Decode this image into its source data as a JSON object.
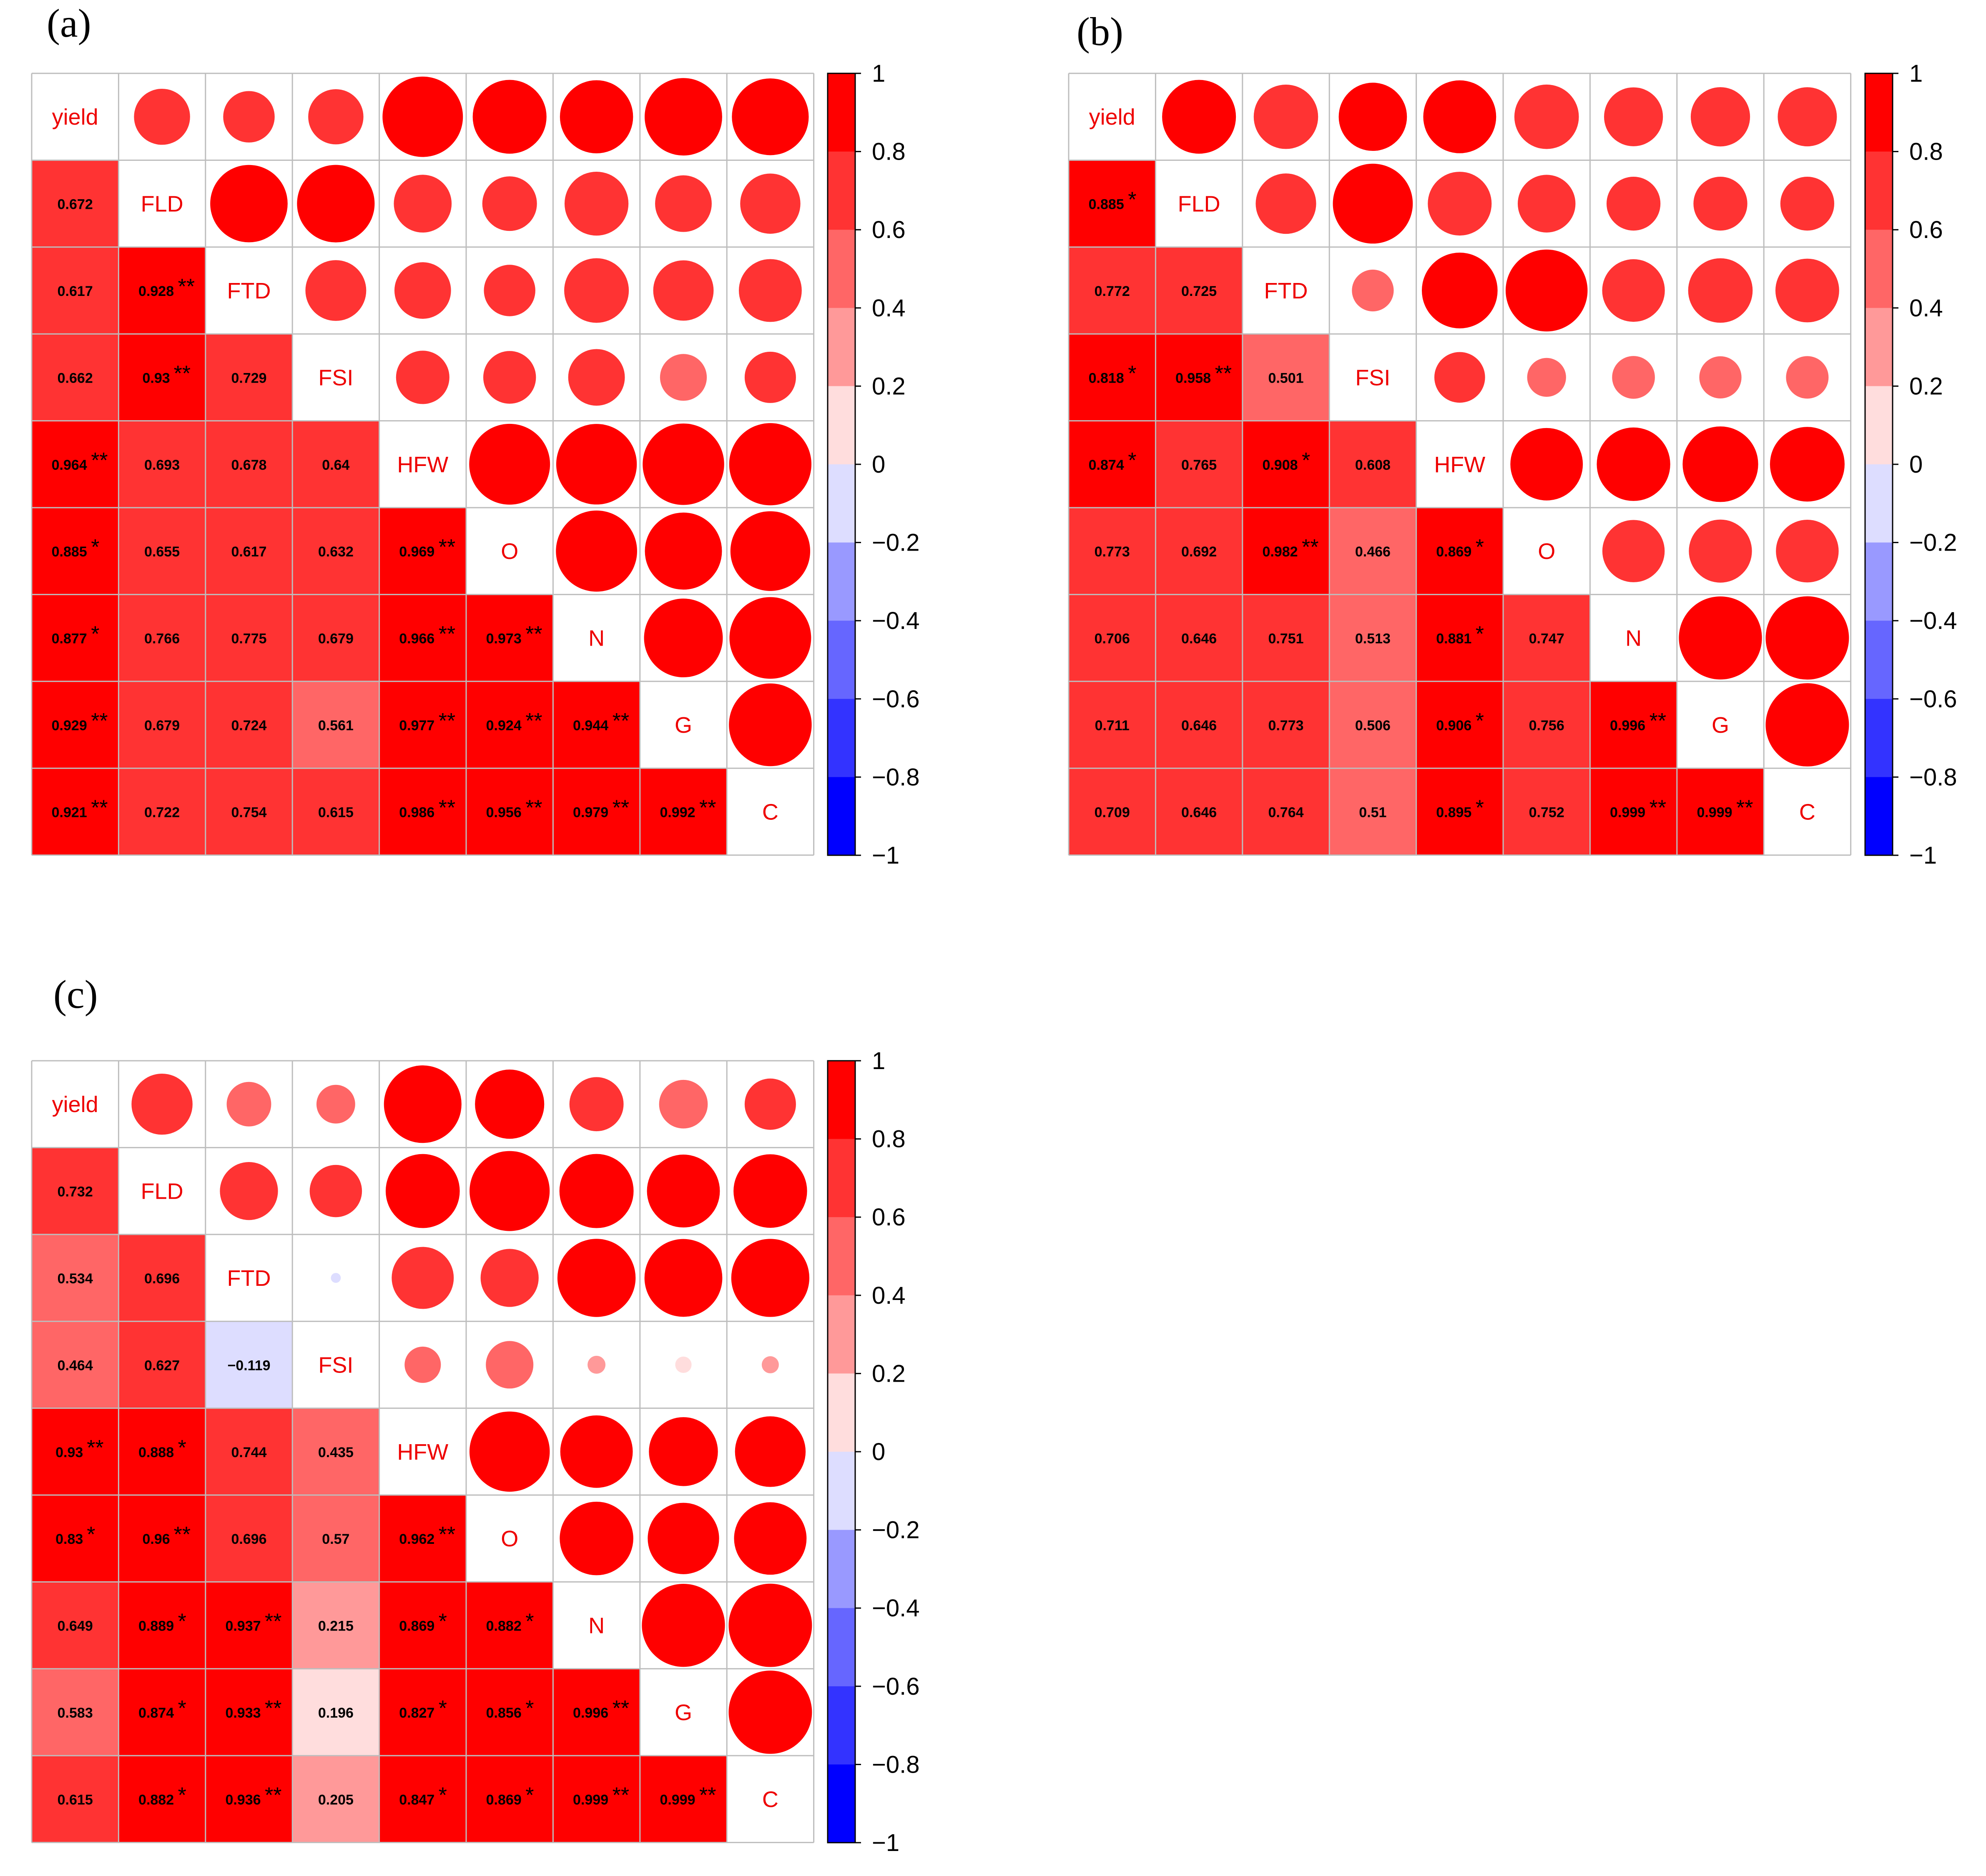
{
  "chart_data": [
    {
      "type": "heatmap",
      "panel_label": "(a)",
      "variables": [
        "yield",
        "FLD",
        "FTD",
        "FSI",
        "HFW",
        "O",
        "N",
        "G",
        "C"
      ],
      "lower_triangle": [
        [],
        [
          {
            "v": 0.672,
            "sig": ""
          }
        ],
        [
          {
            "v": 0.617,
            "sig": ""
          },
          {
            "v": 0.928,
            "sig": "**"
          }
        ],
        [
          {
            "v": 0.662,
            "sig": ""
          },
          {
            "v": 0.93,
            "sig": "**"
          },
          {
            "v": 0.729,
            "sig": ""
          }
        ],
        [
          {
            "v": 0.964,
            "sig": "**"
          },
          {
            "v": 0.693,
            "sig": ""
          },
          {
            "v": 0.678,
            "sig": ""
          },
          {
            "v": 0.64,
            "sig": ""
          }
        ],
        [
          {
            "v": 0.885,
            "sig": "*"
          },
          {
            "v": 0.655,
            "sig": ""
          },
          {
            "v": 0.617,
            "sig": ""
          },
          {
            "v": 0.632,
            "sig": ""
          },
          {
            "v": 0.969,
            "sig": "**"
          }
        ],
        [
          {
            "v": 0.877,
            "sig": "*"
          },
          {
            "v": 0.766,
            "sig": ""
          },
          {
            "v": 0.775,
            "sig": ""
          },
          {
            "v": 0.679,
            "sig": ""
          },
          {
            "v": 0.966,
            "sig": "**"
          },
          {
            "v": 0.973,
            "sig": "**"
          }
        ],
        [
          {
            "v": 0.929,
            "sig": "**"
          },
          {
            "v": 0.679,
            "sig": ""
          },
          {
            "v": 0.724,
            "sig": ""
          },
          {
            "v": 0.561,
            "sig": ""
          },
          {
            "v": 0.977,
            "sig": "**"
          },
          {
            "v": 0.924,
            "sig": "**"
          },
          {
            "v": 0.944,
            "sig": "**"
          }
        ],
        [
          {
            "v": 0.921,
            "sig": "**"
          },
          {
            "v": 0.722,
            "sig": ""
          },
          {
            "v": 0.754,
            "sig": ""
          },
          {
            "v": 0.615,
            "sig": ""
          },
          {
            "v": 0.986,
            "sig": "**"
          },
          {
            "v": 0.956,
            "sig": "**"
          },
          {
            "v": 0.979,
            "sig": "**"
          },
          {
            "v": 0.992,
            "sig": "**"
          }
        ]
      ],
      "colorbar": {
        "range": [
          -1,
          1
        ],
        "ticks": [
          "1",
          "0.8",
          "0.6",
          "0.4",
          "0.2",
          "0",
          "−0.2",
          "−0.4",
          "−0.6",
          "−0.8",
          "−1"
        ]
      }
    },
    {
      "type": "heatmap",
      "panel_label": "(b)",
      "variables": [
        "yield",
        "FLD",
        "FTD",
        "FSI",
        "HFW",
        "O",
        "N",
        "G",
        "C"
      ],
      "lower_triangle": [
        [],
        [
          {
            "v": 0.885,
            "sig": "*"
          }
        ],
        [
          {
            "v": 0.772,
            "sig": ""
          },
          {
            "v": 0.725,
            "sig": ""
          }
        ],
        [
          {
            "v": 0.818,
            "sig": "*"
          },
          {
            "v": 0.958,
            "sig": "**"
          },
          {
            "v": 0.501,
            "sig": ""
          }
        ],
        [
          {
            "v": 0.874,
            "sig": "*"
          },
          {
            "v": 0.765,
            "sig": ""
          },
          {
            "v": 0.908,
            "sig": "*"
          },
          {
            "v": 0.608,
            "sig": ""
          }
        ],
        [
          {
            "v": 0.773,
            "sig": ""
          },
          {
            "v": 0.692,
            "sig": ""
          },
          {
            "v": 0.982,
            "sig": "**"
          },
          {
            "v": 0.466,
            "sig": ""
          },
          {
            "v": 0.869,
            "sig": "*"
          }
        ],
        [
          {
            "v": 0.706,
            "sig": ""
          },
          {
            "v": 0.646,
            "sig": ""
          },
          {
            "v": 0.751,
            "sig": ""
          },
          {
            "v": 0.513,
            "sig": ""
          },
          {
            "v": 0.881,
            "sig": "*"
          },
          {
            "v": 0.747,
            "sig": ""
          }
        ],
        [
          {
            "v": 0.711,
            "sig": ""
          },
          {
            "v": 0.646,
            "sig": ""
          },
          {
            "v": 0.773,
            "sig": ""
          },
          {
            "v": 0.506,
            "sig": ""
          },
          {
            "v": 0.906,
            "sig": "*"
          },
          {
            "v": 0.756,
            "sig": ""
          },
          {
            "v": 0.996,
            "sig": "**"
          }
        ],
        [
          {
            "v": 0.709,
            "sig": ""
          },
          {
            "v": 0.646,
            "sig": ""
          },
          {
            "v": 0.764,
            "sig": ""
          },
          {
            "v": 0.51,
            "sig": ""
          },
          {
            "v": 0.895,
            "sig": "*"
          },
          {
            "v": 0.752,
            "sig": ""
          },
          {
            "v": 0.999,
            "sig": "**"
          },
          {
            "v": 0.999,
            "sig": "**"
          }
        ]
      ],
      "colorbar": {
        "range": [
          -1,
          1
        ],
        "ticks": [
          "1",
          "0.8",
          "0.6",
          "0.4",
          "0.2",
          "0",
          "−0.2",
          "−0.4",
          "−0.6",
          "−0.8",
          "−1"
        ]
      }
    },
    {
      "type": "heatmap",
      "panel_label": "(c)",
      "variables": [
        "yield",
        "FLD",
        "FTD",
        "FSI",
        "HFW",
        "O",
        "N",
        "G",
        "C"
      ],
      "lower_triangle": [
        [],
        [
          {
            "v": 0.732,
            "sig": ""
          }
        ],
        [
          {
            "v": 0.534,
            "sig": ""
          },
          {
            "v": 0.696,
            "sig": ""
          }
        ],
        [
          {
            "v": 0.464,
            "sig": ""
          },
          {
            "v": 0.627,
            "sig": ""
          },
          {
            "v": -0.119,
            "sig": ""
          }
        ],
        [
          {
            "v": 0.93,
            "sig": "**"
          },
          {
            "v": 0.888,
            "sig": "*"
          },
          {
            "v": 0.744,
            "sig": ""
          },
          {
            "v": 0.435,
            "sig": ""
          }
        ],
        [
          {
            "v": 0.83,
            "sig": "*"
          },
          {
            "v": 0.96,
            "sig": "**"
          },
          {
            "v": 0.696,
            "sig": ""
          },
          {
            "v": 0.57,
            "sig": ""
          },
          {
            "v": 0.962,
            "sig": "**"
          }
        ],
        [
          {
            "v": 0.649,
            "sig": ""
          },
          {
            "v": 0.889,
            "sig": "*"
          },
          {
            "v": 0.937,
            "sig": "**"
          },
          {
            "v": 0.215,
            "sig": ""
          },
          {
            "v": 0.869,
            "sig": "*"
          },
          {
            "v": 0.882,
            "sig": "*"
          }
        ],
        [
          {
            "v": 0.583,
            "sig": ""
          },
          {
            "v": 0.874,
            "sig": "*"
          },
          {
            "v": 0.933,
            "sig": "**"
          },
          {
            "v": 0.196,
            "sig": ""
          },
          {
            "v": 0.827,
            "sig": "*"
          },
          {
            "v": 0.856,
            "sig": "*"
          },
          {
            "v": 0.996,
            "sig": "**"
          }
        ],
        [
          {
            "v": 0.615,
            "sig": ""
          },
          {
            "v": 0.882,
            "sig": "*"
          },
          {
            "v": 0.936,
            "sig": "**"
          },
          {
            "v": 0.205,
            "sig": ""
          },
          {
            "v": 0.847,
            "sig": "*"
          },
          {
            "v": 0.869,
            "sig": "*"
          },
          {
            "v": 0.999,
            "sig": "**"
          },
          {
            "v": 0.999,
            "sig": "**"
          }
        ]
      ],
      "colorbar": {
        "range": [
          -1,
          1
        ],
        "ticks": [
          "1",
          "0.8",
          "0.6",
          "0.4",
          "0.2",
          "0",
          "−0.2",
          "−0.4",
          "−0.6",
          "−0.8",
          "−1"
        ]
      }
    }
  ]
}
